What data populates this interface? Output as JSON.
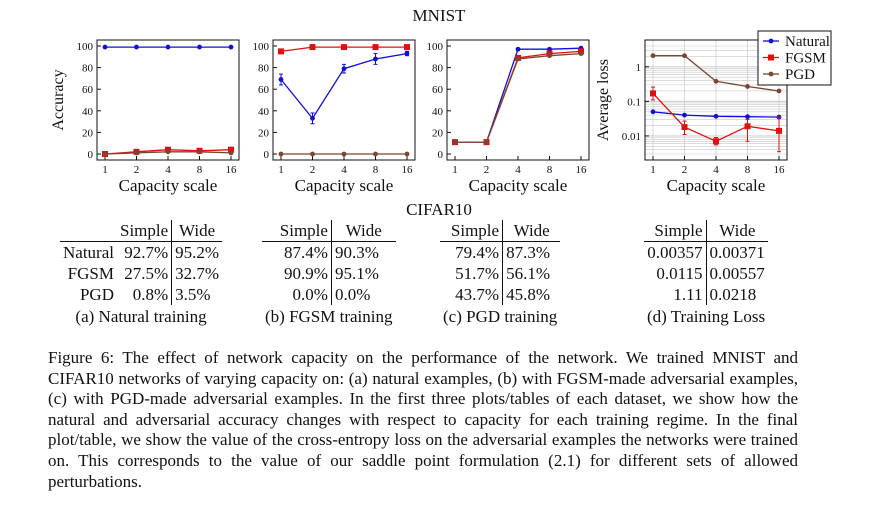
{
  "mnist_title": "MNIST",
  "cifar_title": "CIFAR10",
  "legend": {
    "natural": "Natural",
    "fgsm": "FGSM",
    "pgd": "PGD"
  },
  "colors": {
    "natural": "#1010d8",
    "fgsm": "#e01010",
    "pgd": "#7a4630"
  },
  "chart_data": [
    {
      "type": "line",
      "panel": "a",
      "xlabel": "Capacity scale",
      "ylabel": "Accuracy",
      "x": [
        1,
        2,
        4,
        8,
        16
      ],
      "xticks": [
        "1",
        "2",
        "4",
        "8",
        "16"
      ],
      "yticks": [
        "0",
        "20",
        "40",
        "60",
        "80",
        "100"
      ],
      "ylim": [
        0,
        100
      ],
      "series": [
        {
          "name": "Natural",
          "values": [
            99,
            99,
            99,
            99,
            99
          ],
          "err": [
            0,
            0,
            0,
            0,
            0
          ]
        },
        {
          "name": "FGSM",
          "values": [
            0,
            2,
            4,
            3,
            4
          ],
          "err": [
            0,
            1,
            1,
            1,
            1
          ]
        },
        {
          "name": "PGD",
          "values": [
            0,
            1,
            2,
            2,
            1
          ],
          "err": [
            0,
            0,
            0,
            0,
            0
          ]
        }
      ]
    },
    {
      "type": "line",
      "panel": "b",
      "xlabel": "Capacity scale",
      "ylabel": "",
      "x": [
        1,
        2,
        4,
        8,
        16
      ],
      "xticks": [
        "1",
        "2",
        "4",
        "8",
        "16"
      ],
      "yticks": [
        "0",
        "20",
        "40",
        "60",
        "80",
        "100"
      ],
      "ylim": [
        0,
        100
      ],
      "series": [
        {
          "name": "Natural",
          "values": [
            69,
            33,
            79,
            88,
            93
          ],
          "err": [
            5,
            5,
            4,
            5,
            2
          ]
        },
        {
          "name": "FGSM",
          "values": [
            95,
            99,
            99,
            99,
            99
          ],
          "err": [
            2,
            1,
            0,
            0,
            0
          ]
        },
        {
          "name": "PGD",
          "values": [
            0,
            0,
            0,
            0,
            0
          ],
          "err": [
            0,
            0,
            0,
            0,
            0
          ]
        }
      ]
    },
    {
      "type": "line",
      "panel": "c",
      "xlabel": "Capacity scale",
      "ylabel": "",
      "x": [
        1,
        2,
        4,
        8,
        16
      ],
      "xticks": [
        "1",
        "2",
        "4",
        "8",
        "16"
      ],
      "yticks": [
        "0",
        "20",
        "40",
        "60",
        "80",
        "100"
      ],
      "ylim": [
        0,
        100
      ],
      "series": [
        {
          "name": "Natural",
          "values": [
            11,
            11,
            97,
            97,
            98
          ],
          "err": [
            0,
            0,
            1,
            1,
            1
          ]
        },
        {
          "name": "FGSM",
          "values": [
            11,
            11,
            89,
            93,
            95
          ],
          "err": [
            0,
            0,
            1,
            1,
            1
          ]
        },
        {
          "name": "PGD",
          "values": [
            11,
            11,
            88,
            91,
            93
          ],
          "err": [
            0,
            0,
            1,
            1,
            1
          ]
        }
      ]
    },
    {
      "type": "line",
      "panel": "d",
      "xlabel": "Capacity scale",
      "ylabel": "Average loss",
      "x": [
        1,
        2,
        4,
        8,
        16
      ],
      "xticks": [
        "1",
        "2",
        "4",
        "8",
        "16"
      ],
      "yticks": [
        "0.01",
        "0.1",
        "1"
      ],
      "ylim": [
        0.003,
        4
      ],
      "yscale": "log",
      "grid": true,
      "legend_position": "top-right",
      "series": [
        {
          "name": "Natural",
          "values": [
            0.05,
            0.04,
            0.037,
            0.036,
            0.035
          ],
          "err_lo": [
            0.05,
            0.04,
            0.037,
            0.036,
            0.035
          ],
          "err_hi": [
            0.05,
            0.04,
            0.037,
            0.036,
            0.035
          ]
        },
        {
          "name": "FGSM",
          "values": [
            0.17,
            0.018,
            0.007,
            0.019,
            0.014
          ],
          "err_lo": [
            0.11,
            0.011,
            0.0055,
            0.007,
            0.0035
          ],
          "err_hi": [
            0.26,
            0.027,
            0.009,
            0.03,
            0.035
          ]
        },
        {
          "name": "PGD",
          "values": [
            2.1,
            2.1,
            0.38,
            0.27,
            0.2
          ],
          "err_lo": [
            2.1,
            2.1,
            0.38,
            0.27,
            0.2
          ],
          "err_hi": [
            2.1,
            2.1,
            0.38,
            0.27,
            0.2
          ]
        }
      ]
    }
  ],
  "tables": [
    {
      "cols": [
        "Simple",
        "Wide"
      ],
      "rows": [
        {
          "label": "Natural",
          "simple": "92.7%",
          "wide": "95.2%"
        },
        {
          "label": "FGSM",
          "simple": "27.5%",
          "wide": "32.7%"
        },
        {
          "label": "PGD",
          "simple": "0.8%",
          "wide": "3.5%"
        }
      ],
      "caption": "(a) Natural training"
    },
    {
      "cols": [
        "Simple",
        "Wide"
      ],
      "rows": [
        {
          "simple": "87.4%",
          "wide": "90.3%"
        },
        {
          "simple": "90.9%",
          "wide": "95.1%"
        },
        {
          "simple": "0.0%",
          "wide": "0.0%"
        }
      ],
      "caption": "(b) FGSM training"
    },
    {
      "cols": [
        "Simple",
        "Wide"
      ],
      "rows": [
        {
          "simple": "79.4%",
          "wide": "87.3%"
        },
        {
          "simple": "51.7%",
          "wide": "56.1%"
        },
        {
          "simple": "43.7%",
          "wide": "45.8%"
        }
      ],
      "caption": "(c) PGD training"
    },
    {
      "cols": [
        "Simple",
        "Wide"
      ],
      "rows": [
        {
          "simple": "0.00357",
          "wide": "0.00371"
        },
        {
          "simple": "0.0115",
          "wide": "0.00557"
        },
        {
          "simple": "1.11",
          "wide": "0.0218"
        }
      ],
      "caption": "(d) Training Loss"
    }
  ],
  "caption": "Figure 6: The effect of network capacity on the performance of the network. We trained MNIST and CIFAR10 networks of varying capacity on: (a) natural examples, (b) with FGSM-made adversarial examples, (c) with PGD-made adversarial examples. In the first three plots/tables of each dataset, we show how the natural and adversarial accuracy changes with respect to capacity for each training regime. In the final plot/table, we show the value of the cross-entropy loss on the adversarial examples the networks were trained on. This corresponds to the value of our saddle point formulation (2.1) for different sets of allowed perturbations."
}
